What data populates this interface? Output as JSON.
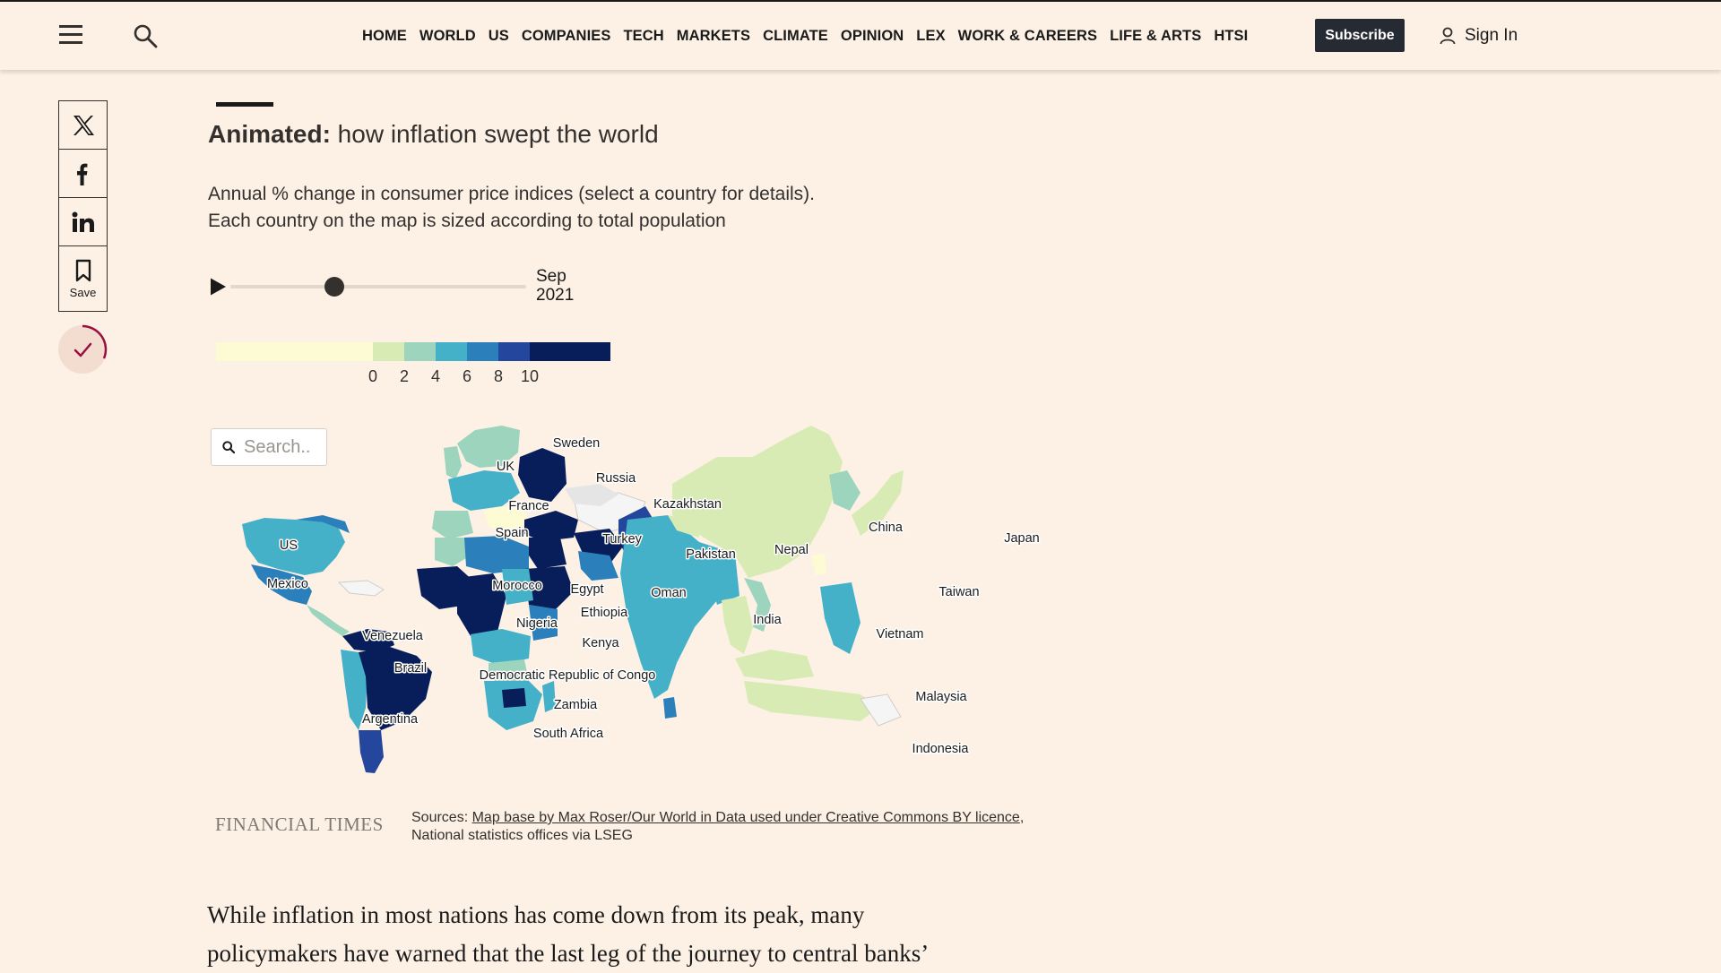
{
  "header": {
    "nav": [
      "HOME",
      "WORLD",
      "US",
      "COMPANIES",
      "TECH",
      "MARKETS",
      "CLIMATE",
      "OPINION",
      "LEX",
      "WORK & CAREERS",
      "LIFE & ARTS",
      "HTSI"
    ],
    "subscribe_label": "Subscribe",
    "signin_label": "Sign In",
    "icons": [
      "menu-icon",
      "search-icon",
      "user-icon"
    ]
  },
  "share": {
    "items": [
      "x-icon",
      "facebook-icon",
      "linkedin-icon"
    ],
    "save_label": "Save"
  },
  "graphic": {
    "title_bold": "Animated:",
    "title_rest": " how inflation swept the world",
    "description_line1": "Annual % change in consumer price indices (select a country for details).",
    "description_line2": "Each country on the map is sized according to total population",
    "timeline": {
      "month": "Sep",
      "year": "2021",
      "position_fraction": 0.35
    },
    "legend": {
      "ticks": [
        "0",
        "2",
        "4",
        "6",
        "8",
        "10"
      ],
      "colors": [
        "#fdfbd3",
        "#d9ebb4",
        "#9cd4bd",
        "#45b1c8",
        "#2b7fbb",
        "#24469c",
        "#071e5b"
      ]
    },
    "search_placeholder": "Search..",
    "map_labels": [
      "Sweden",
      "UK",
      "Russia",
      "France",
      "Kazakhstan",
      "Spain",
      "Turkey",
      "China",
      "Japan",
      "US",
      "Pakistan",
      "Nepal",
      "Morocco",
      "Egypt",
      "Mexico",
      "Oman",
      "Taiwan",
      "Ethiopia",
      "India",
      "Nigeria",
      "Vietnam",
      "Venezuela",
      "Kenya",
      "Brazil",
      "Democratic Republic of Congo",
      "Malaysia",
      "Zambia",
      "Argentina",
      "South Africa",
      "Indonesia"
    ],
    "logo": "FINANCIAL TIMES",
    "sources_prefix": "Sources: ",
    "sources_link": "Map base by Max Roser/Our World in Data used under Creative Commons BY licence",
    "sources_suffix": ",",
    "sources_line2": "National statistics offices via LSEG"
  },
  "article": {
    "line1": "While inflation in most nations has come down from its peak, many",
    "line2": "policymakers have warned that the last leg of the journey to central banks’"
  }
}
